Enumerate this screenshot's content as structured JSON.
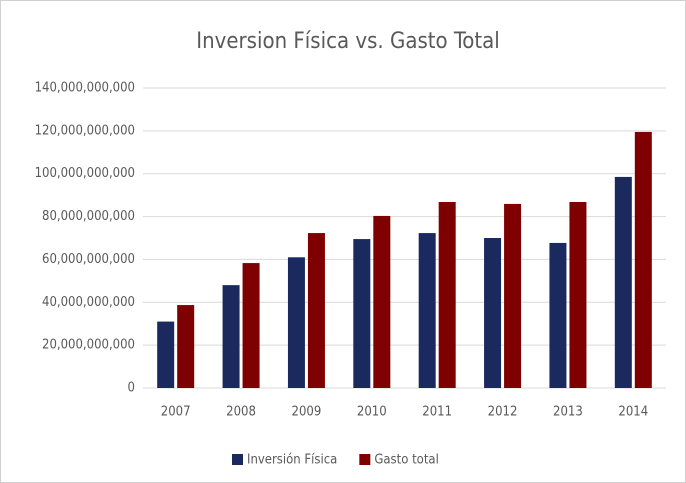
{
  "chart_data": {
    "type": "bar",
    "title": "Inversion Física vs. Gasto Total",
    "categories": [
      "2007",
      "2008",
      "2009",
      "2010",
      "2011",
      "2012",
      "2013",
      "2014"
    ],
    "series": [
      {
        "name": "Inversión Física",
        "color": "#1b2a5e",
        "values": [
          31000000000,
          48000000000,
          61000000000,
          69500000000,
          72300000000,
          70000000000,
          67700000000,
          98500000000
        ]
      },
      {
        "name": "Gasto total",
        "color": "#7f0000",
        "values": [
          38700000000,
          58300000000,
          72300000000,
          80300000000,
          86800000000,
          85900000000,
          86800000000,
          119500000000
        ]
      }
    ],
    "ylim": [
      0,
      140000000000
    ],
    "yticks": [
      0,
      {
        "value": 20000000000,
        "label": "20,000,000,000"
      },
      {
        "value": 40000000000,
        "label": "40,000,000,000"
      },
      {
        "value": 60000000000,
        "label": "60,000,000,000"
      },
      {
        "value": 80000000000,
        "label": "80,000,000,000"
      },
      {
        "value": 100000000000,
        "label": "100,000,000,000"
      },
      {
        "value": 120000000000,
        "label": "120,000,000,000"
      },
      {
        "value": 140000000000,
        "label": "140,000,000,000"
      }
    ],
    "grid": true,
    "legend": "bottom"
  }
}
